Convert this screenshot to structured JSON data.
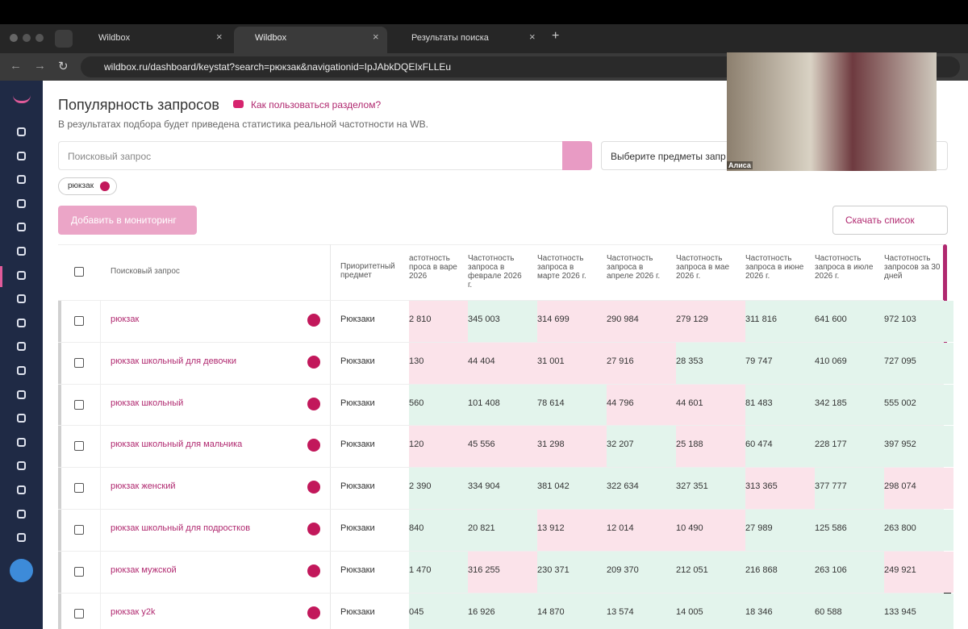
{
  "browser": {
    "tabs": [
      "Wildbox",
      "Wildbox",
      "Результаты поиска"
    ],
    "url": "wildbox.ru/dashboard/keystat?search=рюкзак&navigationid=IpJAbkDQEIxFLLEu"
  },
  "page": {
    "title": "Популярность запросов",
    "help_link": "Как пользоваться разделом?",
    "subtitle": "В результатах подбора будет приведена статистика реальной частотности на WB.",
    "search_placeholder": "Поисковый запрос",
    "subject_select": "Выберите предметы запр",
    "chip": "рюкзак",
    "add_button": "Добавить в мониторинг",
    "download_button": "Скачать список"
  },
  "table": {
    "headers": [
      "Поисковый запрос",
      "Приоритетный предмет",
      "астотность проса в варе 2026",
      "Частотность запроса в феврале 2026 г.",
      "Частотность запроса в марте 2026 г.",
      "Частотность запроса в апреле 2026 г.",
      "Частотность запроса в мае 2026 г.",
      "Частотность запроса в июне 2026 г.",
      "Частотность запроса в июле 2026 г.",
      "Частотность запросов за 30 дней"
    ],
    "rows": [
      {
        "query": "рюкзак",
        "subject": "Рюкзаки",
        "values": [
          "2 810",
          "345 003",
          "314 699",
          "290 984",
          "279 129",
          "311 816",
          "641 600",
          "972 103"
        ],
        "colors": [
          "#fbe3ea",
          "#e3f4ec",
          "#fbe3ea",
          "#fbe3ea",
          "#fbe3ea",
          "#e3f4ec",
          "#e3f4ec",
          "#e3f4ec"
        ]
      },
      {
        "query": "рюкзак школьный для девочки",
        "subject": "Рюкзаки",
        "values": [
          "130",
          "44 404",
          "31 001",
          "27 916",
          "28 353",
          "79 747",
          "410 069",
          "727 095"
        ],
        "colors": [
          "#fbe3ea",
          "#fbe3ea",
          "#fbe3ea",
          "#fbe3ea",
          "#e3f4ec",
          "#e3f4ec",
          "#e3f4ec",
          "#e3f4ec"
        ]
      },
      {
        "query": "рюкзак школьный",
        "subject": "Рюкзаки",
        "values": [
          "560",
          "101 408",
          "78 614",
          "44 796",
          "44 601",
          "81 483",
          "342 185",
          "555 002"
        ],
        "colors": [
          "#e3f4ec",
          "#e3f4ec",
          "#e3f4ec",
          "#fbe3ea",
          "#fbe3ea",
          "#e3f4ec",
          "#e3f4ec",
          "#e3f4ec"
        ]
      },
      {
        "query": "рюкзак школьный для мальчика",
        "subject": "Рюкзаки",
        "values": [
          "120",
          "45 556",
          "31 298",
          "32 207",
          "25 188",
          "60 474",
          "228 177",
          "397 952"
        ],
        "colors": [
          "#fbe3ea",
          "#fbe3ea",
          "#fbe3ea",
          "#e3f4ec",
          "#fbe3ea",
          "#e3f4ec",
          "#e3f4ec",
          "#e3f4ec"
        ]
      },
      {
        "query": "рюкзак женский",
        "subject": "Рюкзаки",
        "values": [
          "2 390",
          "334 904",
          "381 042",
          "322 634",
          "327 351",
          "313 365",
          "377 777",
          "298 074"
        ],
        "colors": [
          "#e3f4ec",
          "#e3f4ec",
          "#e3f4ec",
          "#e3f4ec",
          "#e3f4ec",
          "#fbe3ea",
          "#e3f4ec",
          "#fbe3ea"
        ]
      },
      {
        "query": "рюкзак школьный для подростков",
        "subject": "Рюкзаки",
        "values": [
          "840",
          "20 821",
          "13 912",
          "12 014",
          "10 490",
          "27 989",
          "125 586",
          "263 800"
        ],
        "colors": [
          "#e3f4ec",
          "#e3f4ec",
          "#fbe3ea",
          "#fbe3ea",
          "#fbe3ea",
          "#e3f4ec",
          "#e3f4ec",
          "#e3f4ec"
        ]
      },
      {
        "query": "рюкзак мужской",
        "subject": "Рюкзаки",
        "values": [
          "1 470",
          "316 255",
          "230 371",
          "209 370",
          "212 051",
          "216 868",
          "263 106",
          "249 921"
        ],
        "colors": [
          "#e3f4ec",
          "#fbe3ea",
          "#e3f4ec",
          "#e3f4ec",
          "#e3f4ec",
          "#e3f4ec",
          "#e3f4ec",
          "#fbe3ea"
        ]
      },
      {
        "query": "рюкзак y2k",
        "subject": "Рюкзаки",
        "values": [
          "045",
          "16 926",
          "14 870",
          "13 574",
          "14 005",
          "18 346",
          "60 588",
          "133 945"
        ],
        "colors": [
          "#e3f4ec",
          "#e3f4ec",
          "#e3f4ec",
          "#e3f4ec",
          "#e3f4ec",
          "#e3f4ec",
          "#e3f4ec",
          "#e3f4ec"
        ]
      }
    ]
  },
  "video": {
    "name": "Алиса"
  }
}
